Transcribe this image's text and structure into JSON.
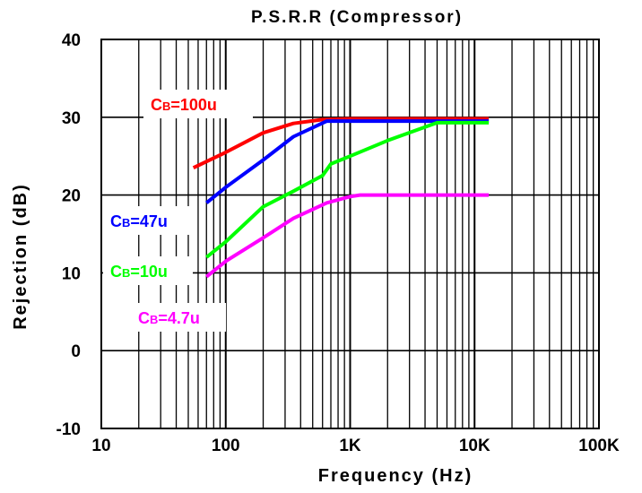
{
  "chart_data": {
    "type": "line",
    "title": "P.S.R.R (Compressor)",
    "xlabel": "Frequency (Hz)",
    "ylabel": "Rejection (dB)",
    "x_scale": "log",
    "xlim": [
      10,
      100000
    ],
    "ylim": [
      -10,
      40
    ],
    "x_ticks": [
      10,
      100,
      1000,
      10000,
      100000
    ],
    "x_tick_labels": [
      "10",
      "100",
      "1K",
      "10K",
      "100K"
    ],
    "y_ticks": [
      -10,
      0,
      10,
      20,
      30,
      40
    ],
    "y_tick_labels": [
      "-10",
      "0",
      "10",
      "20",
      "30",
      "40"
    ],
    "grid": true,
    "series": [
      {
        "name": "CB=100u",
        "label_main": "C",
        "label_sub": "B",
        "label_rest": "=100u",
        "color": "#ff0000",
        "x": [
          55,
          100,
          200,
          350,
          600,
          1000,
          5000,
          13000
        ],
        "y": [
          23.5,
          25.5,
          28,
          29.2,
          29.7,
          29.8,
          29.8,
          29.8
        ]
      },
      {
        "name": "CB=47u",
        "label_main": "C",
        "label_sub": "B",
        "label_rest": "=47u",
        "color": "#0000ff",
        "x": [
          70,
          100,
          200,
          350,
          650,
          1000,
          5000,
          13000
        ],
        "y": [
          19,
          21,
          24.5,
          27.5,
          29.5,
          29.5,
          29.5,
          29.5
        ]
      },
      {
        "name": "CB=10u",
        "label_main": "C",
        "label_sub": "B",
        "label_rest": "=10u",
        "color": "#00ff00",
        "x": [
          70,
          100,
          200,
          350,
          600,
          700,
          1000,
          2000,
          5000,
          13000
        ],
        "y": [
          12,
          14,
          18.5,
          20.5,
          22.5,
          24,
          25,
          27,
          29.3,
          29.3
        ]
      },
      {
        "name": "CB=4.7u",
        "label_main": "C",
        "label_sub": "B",
        "label_rest": "=4.7u",
        "color": "#ff00ff",
        "x": [
          70,
          100,
          200,
          350,
          650,
          1000,
          1200,
          5000,
          13000
        ],
        "y": [
          9.5,
          11.5,
          14.5,
          17,
          19,
          19.8,
          20,
          20,
          20
        ]
      }
    ]
  }
}
